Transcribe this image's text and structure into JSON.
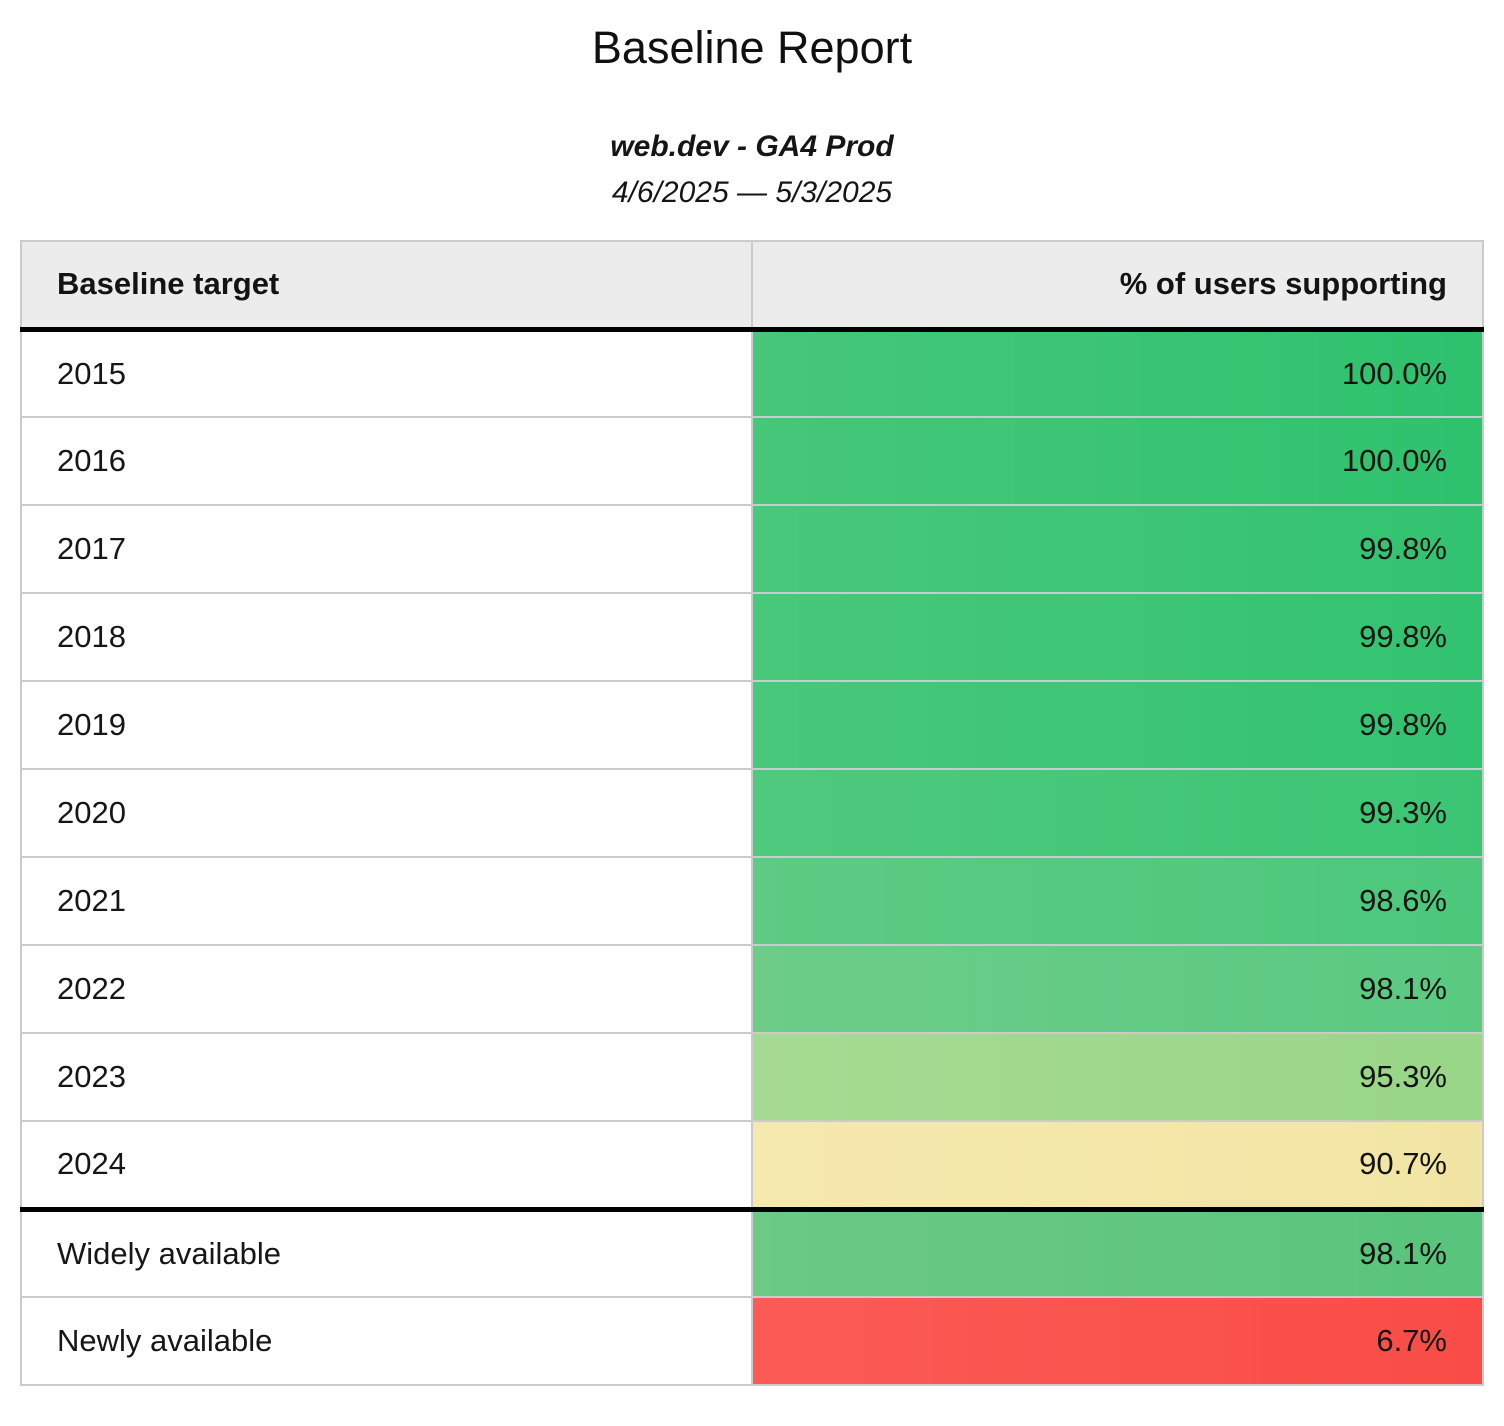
{
  "report": {
    "title": "Baseline Report",
    "subtitle": "web.dev - GA4 Prod",
    "date_range": "4/6/2025 — 5/3/2025"
  },
  "table": {
    "columns": {
      "target": "Baseline target",
      "value": "% of users supporting"
    },
    "rows": [
      {
        "target": "2015",
        "value": "100.0%",
        "color_left": "#46c77a",
        "color_right": "#2ec26d"
      },
      {
        "target": "2016",
        "value": "100.0%",
        "color_left": "#46c77a",
        "color_right": "#2ec26d"
      },
      {
        "target": "2017",
        "value": "99.8%",
        "color_left": "#48c87b",
        "color_right": "#32c370"
      },
      {
        "target": "2018",
        "value": "99.8%",
        "color_left": "#48c87b",
        "color_right": "#32c370"
      },
      {
        "target": "2019",
        "value": "99.8%",
        "color_left": "#48c87b",
        "color_right": "#32c370"
      },
      {
        "target": "2020",
        "value": "99.3%",
        "color_left": "#4fc97e",
        "color_right": "#3bc573"
      },
      {
        "target": "2021",
        "value": "98.6%",
        "color_left": "#5eca83",
        "color_right": "#4bc87b"
      },
      {
        "target": "2022",
        "value": "98.1%",
        "color_left": "#6ccc88",
        "color_right": "#5aca81"
      },
      {
        "target": "2023",
        "value": "95.3%",
        "color_left": "#a6da92",
        "color_right": "#99d687"
      },
      {
        "target": "2024",
        "value": "90.7%",
        "color_left": "#f6e9ae",
        "color_right": "#f2e5a4"
      },
      {
        "target": "Widely available",
        "value": "98.1%",
        "color_left": "#6cc986",
        "color_right": "#58c47c"
      },
      {
        "target": "Newly available",
        "value": "6.7%",
        "color_left": "#fb5b55",
        "color_right": "#f94c47"
      }
    ]
  },
  "colors": {
    "header_background": "#ececec",
    "grid_border": "#cbcbcb",
    "group_separator": "#000000",
    "green_full": "#3ac471",
    "green_light": "#a0d88e",
    "yellow": "#f5e8ab",
    "red": "#fa534d"
  },
  "chart_data": {
    "type": "table",
    "title": "Baseline Report",
    "subtitle": "web.dev - GA4 Prod",
    "date_range": "4/6/2025 — 5/3/2025",
    "columns": [
      "Baseline target",
      "% of users supporting"
    ],
    "categories": [
      "2015",
      "2016",
      "2017",
      "2018",
      "2019",
      "2020",
      "2021",
      "2022",
      "2023",
      "2024",
      "Widely available",
      "Newly available"
    ],
    "values": [
      100.0,
      100.0,
      99.8,
      99.8,
      99.8,
      99.3,
      98.6,
      98.1,
      95.3,
      90.7,
      98.1,
      6.7
    ],
    "value_unit": "%",
    "color_scale": "green (high %) through yellow to red (low %)"
  }
}
